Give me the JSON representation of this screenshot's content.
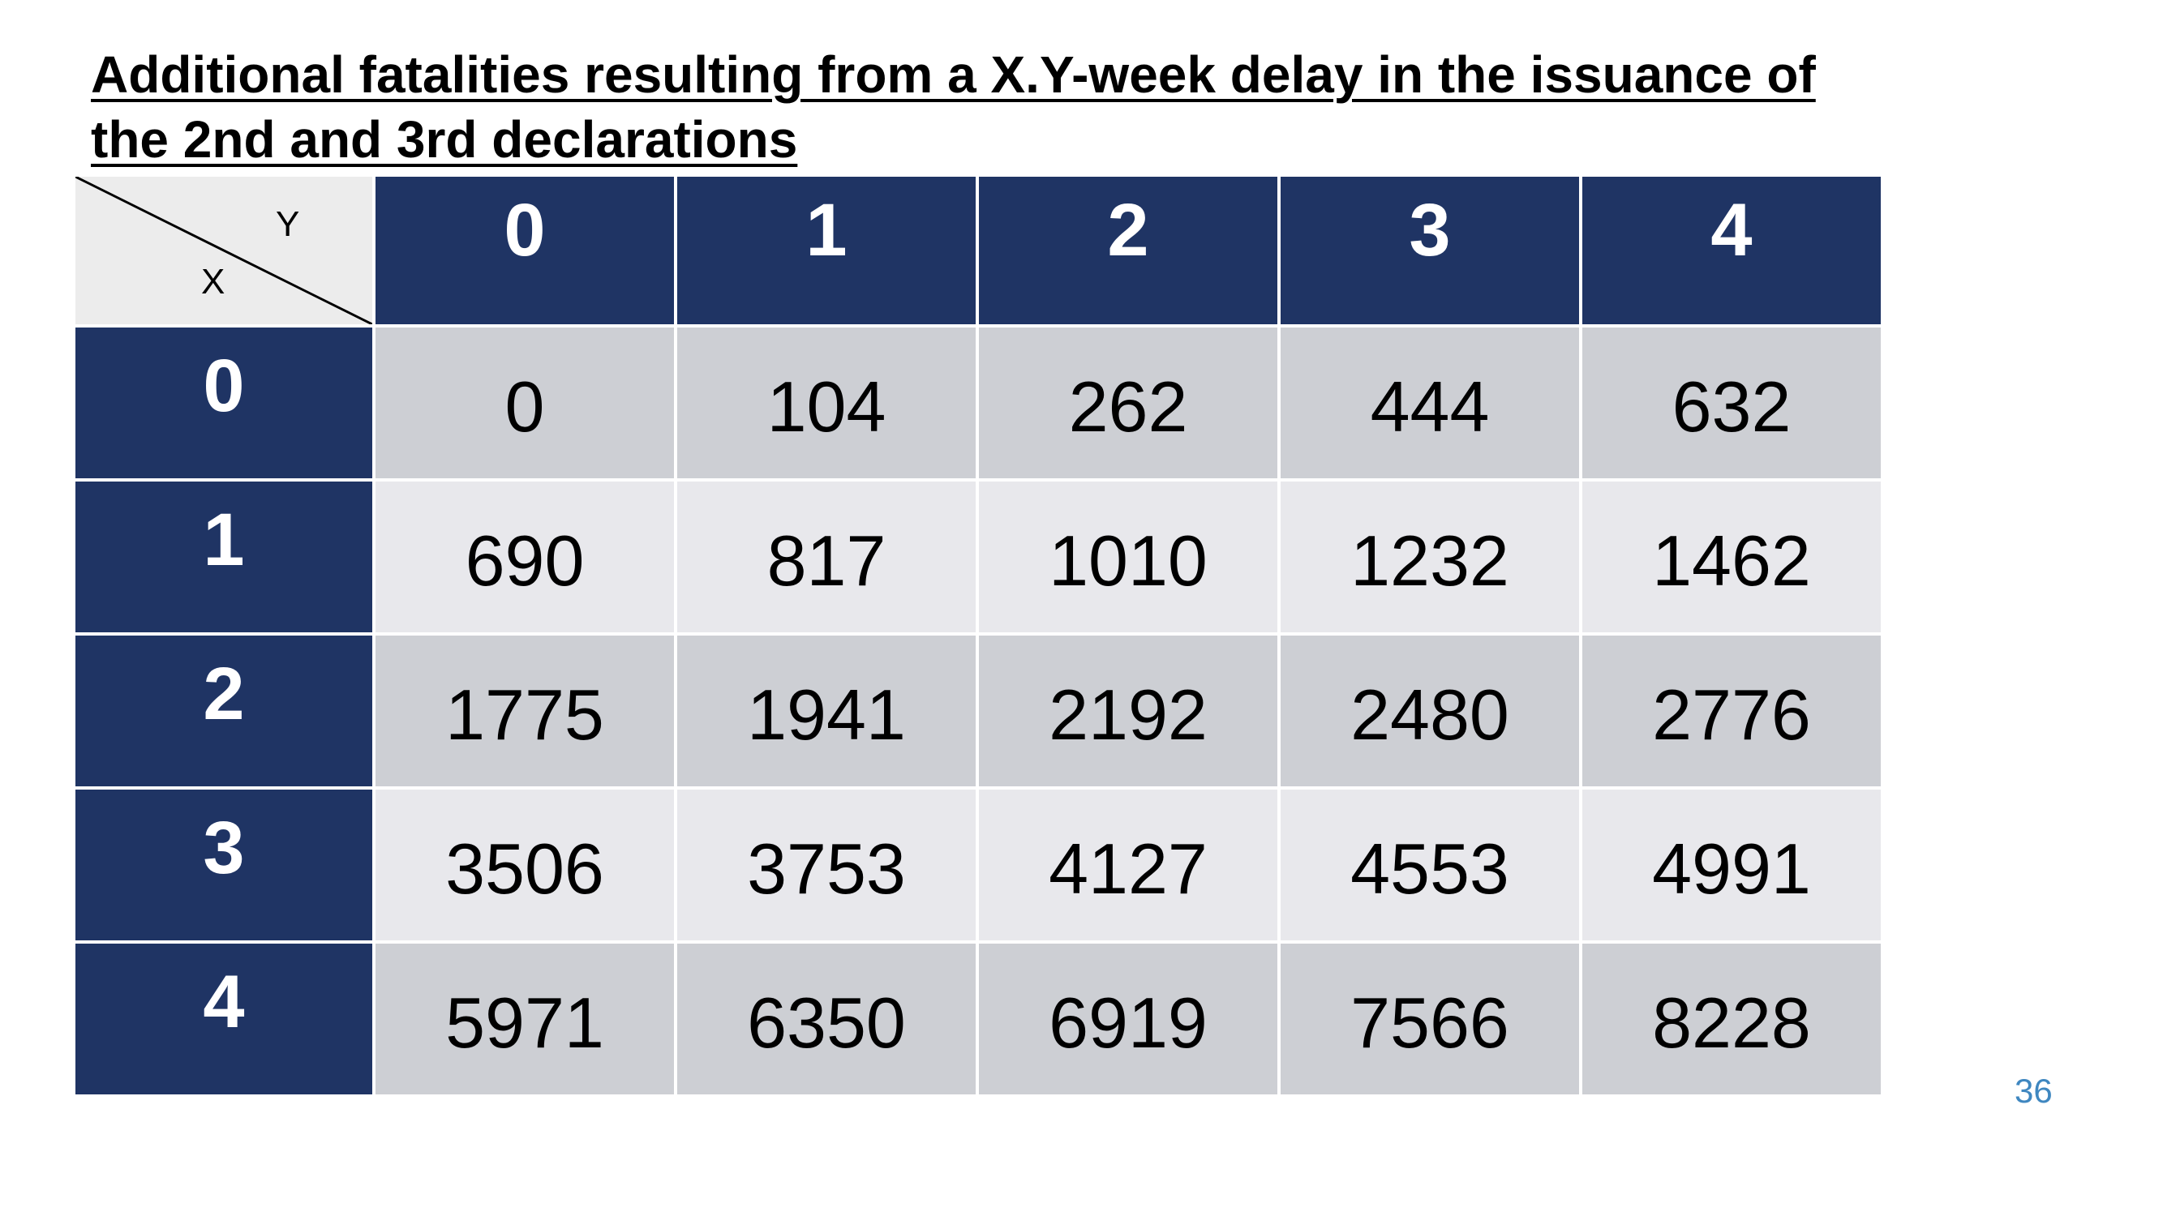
{
  "title": {
    "line1": "Additional fatalities resulting from a X.Y-week delay in the issuance of",
    "line2": "the 2nd and 3rd declarations"
  },
  "table": {
    "corner_top_label": "Y",
    "corner_bottom_label": "X",
    "column_headers": [
      "0",
      "1",
      "2",
      "3",
      "4"
    ],
    "row_headers": [
      "0",
      "1",
      "2",
      "3",
      "4"
    ],
    "rows": [
      [
        "0",
        "104",
        "262",
        "444",
        "632"
      ],
      [
        "690",
        "817",
        "1010",
        "1232",
        "1462"
      ],
      [
        "1775",
        "1941",
        "2192",
        "2480",
        "2776"
      ],
      [
        "3506",
        "3753",
        "4127",
        "4553",
        "4991"
      ],
      [
        "5971",
        "6350",
        "6919",
        "7566",
        "8228"
      ]
    ]
  },
  "page_number": "36",
  "colors": {
    "header_navy": "#1f3464",
    "band_dark": "#cdcfd4",
    "band_light": "#e8e8ec",
    "corner_bg": "#ececec",
    "page_number": "#3f87c0"
  }
}
